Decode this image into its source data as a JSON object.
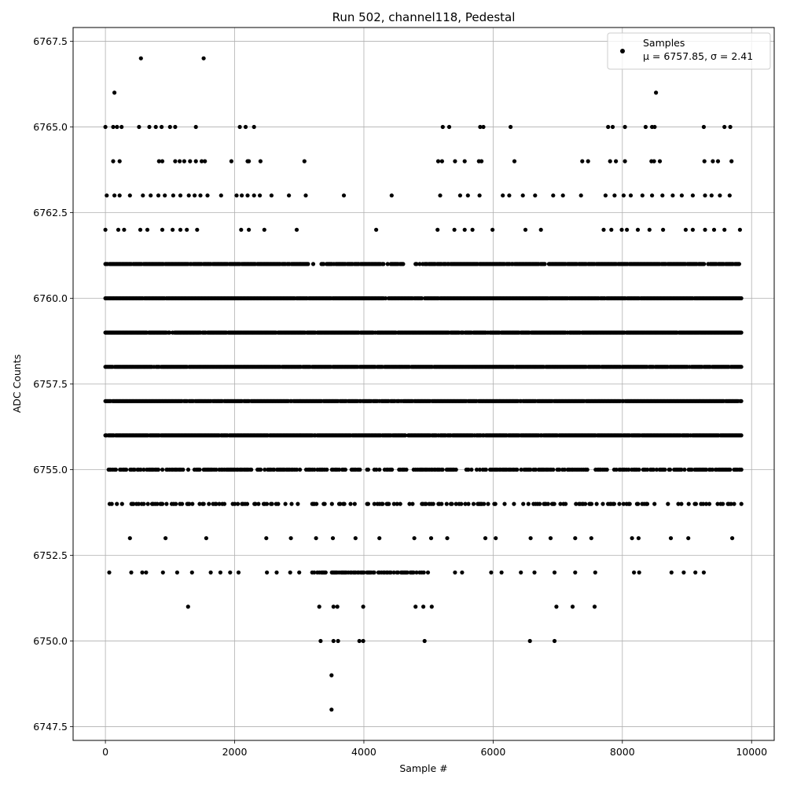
{
  "chart_data": {
    "type": "scatter",
    "title": "Run 502, channel118, Pedestal",
    "xlabel": "Sample #",
    "ylabel": "ADC Counts",
    "xlim": [
      -500,
      10350
    ],
    "ylim": [
      6747.1,
      6767.9
    ],
    "x_ticks": [
      0,
      2000,
      4000,
      6000,
      8000,
      10000
    ],
    "y_ticks": [
      6747.5,
      6750.0,
      6752.5,
      6755.0,
      6757.5,
      6760.0,
      6762.5,
      6765.0,
      6767.5
    ],
    "x_tick_labels": [
      "0",
      "2000",
      "4000",
      "6000",
      "8000",
      "10000"
    ],
    "y_tick_labels": [
      "6747.5",
      "6750.0",
      "6752.5",
      "6755.0",
      "6757.5",
      "6760.0",
      "6762.5",
      "6765.0",
      "6767.5"
    ],
    "grid": true,
    "legend": {
      "placement": "top-right",
      "entries": [
        {
          "label": "Samples",
          "sublabel": "μ = 6757.85, σ = 2.41",
          "marker": "circle",
          "color": "#000000"
        }
      ]
    },
    "series": [
      {
        "name": "Samples",
        "color": "#000000",
        "bands": [
          {
            "y": 6761,
            "x_range": [
              0,
              9850
            ],
            "density": 0.9,
            "gaps": [
              [
                3150,
                3350
              ],
              [
                4250,
                4400
              ],
              [
                4600,
                4900
              ]
            ]
          },
          {
            "y": 6760,
            "x_range": [
              0,
              9850
            ],
            "density": 0.95
          },
          {
            "y": 6759,
            "x_range": [
              0,
              9850
            ],
            "density": 0.95
          },
          {
            "y": 6758,
            "x_range": [
              0,
              9850
            ],
            "density": 0.97
          },
          {
            "y": 6757,
            "x_range": [
              0,
              9850
            ],
            "density": 0.95
          },
          {
            "y": 6756,
            "x_range": [
              0,
              9850
            ],
            "density": 0.95
          },
          {
            "y": 6755,
            "x_range": [
              50,
              9850
            ],
            "density": 0.55
          },
          {
            "y": 6754,
            "x_range": [
              50,
              9850
            ],
            "density": 0.3
          },
          {
            "y": 6752,
            "x_range": [
              3200,
              5000
            ],
            "density": 0.6
          }
        ],
        "points": [
          [
            550,
            6767
          ],
          [
            1520,
            6767
          ],
          [
            140,
            6766
          ],
          [
            8520,
            6766
          ],
          [
            0,
            6765
          ],
          [
            120,
            6765
          ],
          [
            180,
            6765
          ],
          [
            250,
            6765
          ],
          [
            520,
            6765
          ],
          [
            680,
            6765
          ],
          [
            780,
            6765
          ],
          [
            870,
            6765
          ],
          [
            1000,
            6765
          ],
          [
            1080,
            6765
          ],
          [
            1400,
            6765
          ],
          [
            2080,
            6765
          ],
          [
            2170,
            6765
          ],
          [
            2300,
            6765
          ],
          [
            5220,
            6765
          ],
          [
            5320,
            6765
          ],
          [
            5800,
            6765
          ],
          [
            5850,
            6765
          ],
          [
            6270,
            6765
          ],
          [
            7780,
            6765
          ],
          [
            7850,
            6765
          ],
          [
            8040,
            6765
          ],
          [
            8360,
            6765
          ],
          [
            8460,
            6765
          ],
          [
            8500,
            6765
          ],
          [
            9260,
            6765
          ],
          [
            9580,
            6765
          ],
          [
            9670,
            6765
          ],
          [
            120,
            6764
          ],
          [
            220,
            6764
          ],
          [
            830,
            6764
          ],
          [
            880,
            6764
          ],
          [
            1080,
            6764
          ],
          [
            1150,
            6764
          ],
          [
            1220,
            6764
          ],
          [
            1310,
            6764
          ],
          [
            1400,
            6764
          ],
          [
            1490,
            6764
          ],
          [
            1540,
            6764
          ],
          [
            1950,
            6764
          ],
          [
            2200,
            6764
          ],
          [
            2220,
            6764
          ],
          [
            2400,
            6764
          ],
          [
            3080,
            6764
          ],
          [
            5150,
            6764
          ],
          [
            5210,
            6764
          ],
          [
            5410,
            6764
          ],
          [
            5560,
            6764
          ],
          [
            5780,
            6764
          ],
          [
            5820,
            6764
          ],
          [
            6330,
            6764
          ],
          [
            7380,
            6764
          ],
          [
            7470,
            6764
          ],
          [
            7810,
            6764
          ],
          [
            7900,
            6764
          ],
          [
            8040,
            6764
          ],
          [
            8450,
            6764
          ],
          [
            8490,
            6764
          ],
          [
            8580,
            6764
          ],
          [
            9270,
            6764
          ],
          [
            9400,
            6764
          ],
          [
            9480,
            6764
          ],
          [
            9690,
            6764
          ],
          [
            20,
            6763
          ],
          [
            140,
            6763
          ],
          [
            220,
            6763
          ],
          [
            380,
            6763
          ],
          [
            580,
            6763
          ],
          [
            700,
            6763
          ],
          [
            820,
            6763
          ],
          [
            920,
            6763
          ],
          [
            1050,
            6763
          ],
          [
            1160,
            6763
          ],
          [
            1290,
            6763
          ],
          [
            1380,
            6763
          ],
          [
            1470,
            6763
          ],
          [
            1580,
            6763
          ],
          [
            1790,
            6763
          ],
          [
            2030,
            6763
          ],
          [
            2110,
            6763
          ],
          [
            2200,
            6763
          ],
          [
            2300,
            6763
          ],
          [
            2390,
            6763
          ],
          [
            2570,
            6763
          ],
          [
            2840,
            6763
          ],
          [
            3100,
            6763
          ],
          [
            3690,
            6763
          ],
          [
            4430,
            6763
          ],
          [
            5180,
            6763
          ],
          [
            5490,
            6763
          ],
          [
            5610,
            6763
          ],
          [
            5790,
            6763
          ],
          [
            6150,
            6763
          ],
          [
            6250,
            6763
          ],
          [
            6460,
            6763
          ],
          [
            6650,
            6763
          ],
          [
            6930,
            6763
          ],
          [
            7080,
            6763
          ],
          [
            7360,
            6763
          ],
          [
            7740,
            6763
          ],
          [
            7880,
            6763
          ],
          [
            8020,
            6763
          ],
          [
            8130,
            6763
          ],
          [
            8310,
            6763
          ],
          [
            8460,
            6763
          ],
          [
            8620,
            6763
          ],
          [
            8780,
            6763
          ],
          [
            8920,
            6763
          ],
          [
            9090,
            6763
          ],
          [
            9280,
            6763
          ],
          [
            9380,
            6763
          ],
          [
            9510,
            6763
          ],
          [
            9660,
            6763
          ],
          [
            0,
            6762
          ],
          [
            200,
            6762
          ],
          [
            290,
            6762
          ],
          [
            540,
            6762
          ],
          [
            650,
            6762
          ],
          [
            880,
            6762
          ],
          [
            1040,
            6762
          ],
          [
            1160,
            6762
          ],
          [
            1260,
            6762
          ],
          [
            1420,
            6762
          ],
          [
            2100,
            6762
          ],
          [
            2220,
            6762
          ],
          [
            2460,
            6762
          ],
          [
            2960,
            6762
          ],
          [
            4190,
            6762
          ],
          [
            5140,
            6762
          ],
          [
            5400,
            6762
          ],
          [
            5560,
            6762
          ],
          [
            5680,
            6762
          ],
          [
            5990,
            6762
          ],
          [
            6500,
            6762
          ],
          [
            6740,
            6762
          ],
          [
            7710,
            6762
          ],
          [
            7830,
            6762
          ],
          [
            7990,
            6762
          ],
          [
            8070,
            6762
          ],
          [
            8240,
            6762
          ],
          [
            8420,
            6762
          ],
          [
            8630,
            6762
          ],
          [
            8980,
            6762
          ],
          [
            9090,
            6762
          ],
          [
            9280,
            6762
          ],
          [
            9420,
            6762
          ],
          [
            9580,
            6762
          ],
          [
            9820,
            6762
          ],
          [
            380,
            6753
          ],
          [
            930,
            6753
          ],
          [
            1560,
            6753
          ],
          [
            2490,
            6753
          ],
          [
            2870,
            6753
          ],
          [
            3260,
            6753
          ],
          [
            3520,
            6753
          ],
          [
            3870,
            6753
          ],
          [
            4240,
            6753
          ],
          [
            4780,
            6753
          ],
          [
            5040,
            6753
          ],
          [
            5290,
            6753
          ],
          [
            5880,
            6753
          ],
          [
            6040,
            6753
          ],
          [
            6580,
            6753
          ],
          [
            6890,
            6753
          ],
          [
            7270,
            6753
          ],
          [
            7520,
            6753
          ],
          [
            8150,
            6753
          ],
          [
            8250,
            6753
          ],
          [
            8750,
            6753
          ],
          [
            9020,
            6753
          ],
          [
            9700,
            6753
          ],
          [
            60,
            6752
          ],
          [
            400,
            6752
          ],
          [
            570,
            6752
          ],
          [
            630,
            6752
          ],
          [
            890,
            6752
          ],
          [
            1110,
            6752
          ],
          [
            1340,
            6752
          ],
          [
            1630,
            6752
          ],
          [
            1780,
            6752
          ],
          [
            1930,
            6752
          ],
          [
            2060,
            6752
          ],
          [
            2500,
            6752
          ],
          [
            2650,
            6752
          ],
          [
            2860,
            6752
          ],
          [
            3000,
            6752
          ],
          [
            5410,
            6752
          ],
          [
            5520,
            6752
          ],
          [
            5970,
            6752
          ],
          [
            6130,
            6752
          ],
          [
            6430,
            6752
          ],
          [
            6640,
            6752
          ],
          [
            6950,
            6752
          ],
          [
            7270,
            6752
          ],
          [
            7580,
            6752
          ],
          [
            8180,
            6752
          ],
          [
            8260,
            6752
          ],
          [
            8760,
            6752
          ],
          [
            8950,
            6752
          ],
          [
            9130,
            6752
          ],
          [
            9260,
            6752
          ],
          [
            1280,
            6751
          ],
          [
            3310,
            6751
          ],
          [
            3530,
            6751
          ],
          [
            3590,
            6751
          ],
          [
            3990,
            6751
          ],
          [
            4800,
            6751
          ],
          [
            4920,
            6751
          ],
          [
            5050,
            6751
          ],
          [
            6980,
            6751
          ],
          [
            7230,
            6751
          ],
          [
            7570,
            6751
          ],
          [
            3330,
            6750
          ],
          [
            3530,
            6750
          ],
          [
            3600,
            6750
          ],
          [
            3930,
            6750
          ],
          [
            3990,
            6750
          ],
          [
            4940,
            6750
          ],
          [
            6570,
            6750
          ],
          [
            6950,
            6750
          ],
          [
            3500,
            6749
          ],
          [
            3500,
            6748
          ]
        ]
      }
    ]
  }
}
